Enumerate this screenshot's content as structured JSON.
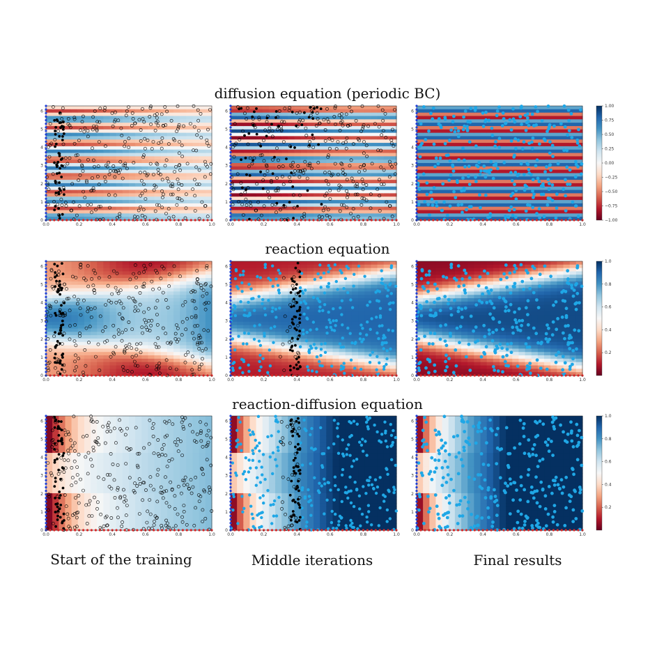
{
  "column_labels": [
    "Start of the training",
    "Middle iterations",
    "Final results"
  ],
  "colors": {
    "low": "#67001f",
    "mid": "#f7f7f7",
    "high": "#053061",
    "boundary_bottom": "#d62728",
    "boundary_left": "#1f3fd6",
    "point_unfit_edge": "#000000",
    "point_black": "#000000",
    "point_fit": "#1fa7e6"
  },
  "chart_data": [
    {
      "type": "heatmap",
      "title": "diffusion equation (periodic BC)",
      "xlim": [
        0,
        1
      ],
      "ylim": [
        0,
        6.283
      ],
      "x_ticks": [
        "0.0",
        "0.2",
        "0.4",
        "0.6",
        "0.8",
        "1.0"
      ],
      "y_ticks": [
        "0",
        "1",
        "2",
        "3",
        "4",
        "5",
        "6"
      ],
      "colorbar": {
        "range": [
          -1.0,
          1.0
        ],
        "ticks": [
          "1.00",
          "0.75",
          "0.50",
          "0.25",
          "0.00",
          "−0.25",
          "−0.50",
          "−0.75",
          "−1.00"
        ]
      },
      "panels": [
        "Start of the training",
        "Middle iterations",
        "Final results"
      ]
    },
    {
      "type": "heatmap",
      "title": "reaction equation",
      "xlim": [
        0,
        1
      ],
      "ylim": [
        0,
        6.283
      ],
      "x_ticks": [
        "0.0",
        "0.2",
        "0.4",
        "0.6",
        "0.8",
        "1.0"
      ],
      "y_ticks": [
        "0",
        "1",
        "2",
        "3",
        "4",
        "5",
        "6"
      ],
      "colorbar": {
        "range": [
          0.0,
          1.0
        ],
        "ticks": [
          "1.0",
          "0.8",
          "0.6",
          "0.4",
          "0.2"
        ]
      },
      "panels": [
        "Start of the training",
        "Middle iterations",
        "Final results"
      ]
    },
    {
      "type": "heatmap",
      "title": "reaction-diffusion equation",
      "xlim": [
        0,
        1
      ],
      "ylim": [
        0,
        6.283
      ],
      "x_ticks": [
        "0.0",
        "0.2",
        "0.4",
        "0.6",
        "0.8",
        "1.0"
      ],
      "y_ticks": [
        "0",
        "1",
        "2",
        "3",
        "4",
        "5",
        "6"
      ],
      "colorbar": {
        "range": [
          0.0,
          1.0
        ],
        "ticks": [
          "1.0",
          "0.8",
          "0.6",
          "0.4",
          "0.2"
        ]
      },
      "panels": [
        "Start of the training",
        "Middle iterations",
        "Final results"
      ]
    }
  ]
}
